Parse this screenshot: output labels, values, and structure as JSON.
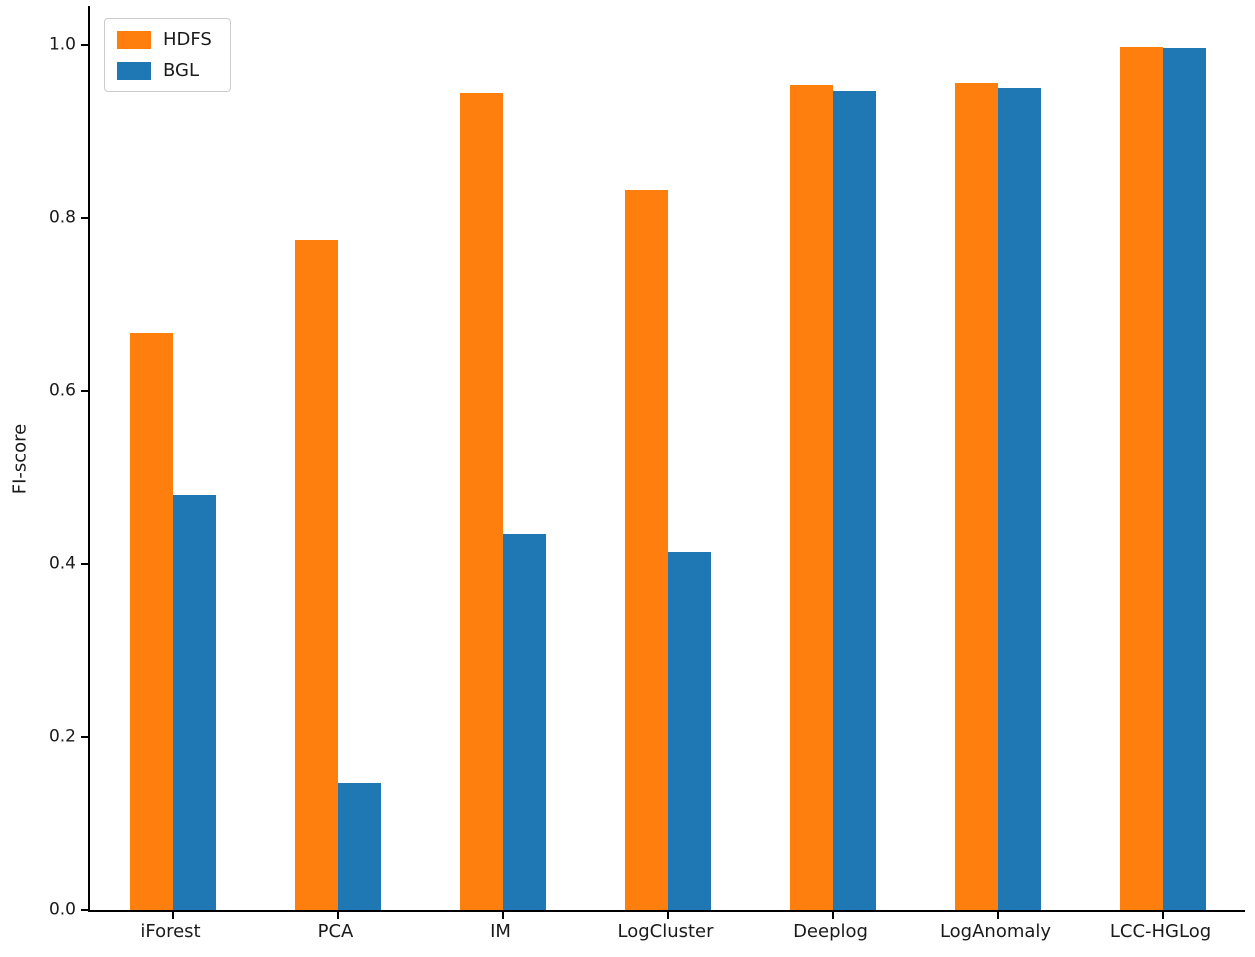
{
  "chart_data": {
    "type": "bar",
    "title": "",
    "xlabel": "",
    "ylabel": "FI-score",
    "categories": [
      "iForest",
      "PCA",
      "IM",
      "LogCluster",
      "Deeplog",
      "LogAnomaly",
      "LCC-HGLog"
    ],
    "series": [
      {
        "name": "HDFS",
        "color": "#ff7f0e",
        "values": [
          0.667,
          0.774,
          0.944,
          0.832,
          0.954,
          0.956,
          0.998
        ]
      },
      {
        "name": "BGL",
        "color": "#1f77b4",
        "values": [
          0.48,
          0.147,
          0.435,
          0.414,
          0.947,
          0.95,
          0.996
        ]
      }
    ],
    "yticks": [
      0.0,
      0.2,
      0.4,
      0.6,
      0.8,
      1.0
    ],
    "ytick_labels": [
      "0.0",
      "0.2",
      "0.4",
      "0.6",
      "0.8",
      "1.0"
    ],
    "ylim": [
      0,
      1.045
    ],
    "grid": false,
    "legend_position": "upper left"
  }
}
